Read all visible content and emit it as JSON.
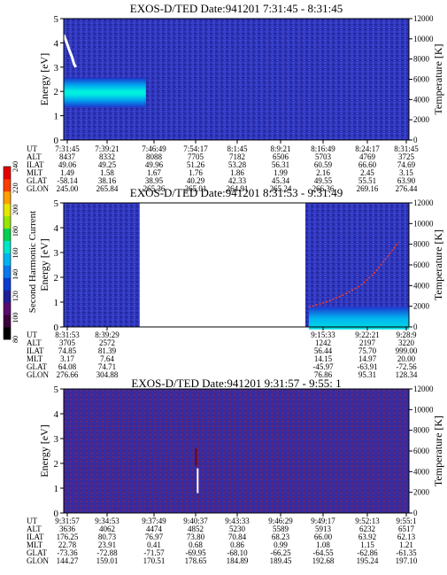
{
  "colorbar": {
    "label": "Second Harmonic Current",
    "ticks": [
      240,
      220,
      200,
      180,
      160,
      140,
      120,
      100,
      80
    ],
    "colors": [
      "#000000",
      "#3c003c",
      "#5a0a6e",
      "#1e1e96",
      "#0a3cd2",
      "#0a78f0",
      "#00b4f0",
      "#00e6c8",
      "#00d250",
      "#96e600",
      "#e6e600",
      "#ffa000",
      "#ff3c00",
      "#e60000"
    ]
  },
  "row_labels": [
    "UT",
    "ALT",
    "ILAT",
    "MLT",
    "GLAT",
    "GLON"
  ],
  "chart_data": [
    {
      "type": "heatmap",
      "title": "EXOS-D/TED   Date:941201   7:31:45 - 8:31:45",
      "ylabel": "Energy [eV]",
      "ylabel2": "Temperature [K]",
      "ylim": [
        0,
        5
      ],
      "y2lim": [
        0,
        12000
      ],
      "yticks": [
        0,
        1,
        2,
        3,
        4,
        5
      ],
      "y2ticks": [
        0,
        2000,
        4000,
        6000,
        8000,
        10000,
        12000
      ],
      "features": {
        "band": {
          "t_from": 0,
          "t_to": 0.238,
          "e_center": 1.95,
          "e_half_width": 0.6
        },
        "temperature_trace": [
          [
            0.0,
            10400
          ],
          [
            0.008,
            9700
          ],
          [
            0.016,
            8900
          ],
          [
            0.024,
            8200
          ],
          [
            0.03,
            7500
          ],
          [
            0.035,
            7200
          ]
        ],
        "gap": [],
        "spikes": []
      },
      "ut": [
        "7:31:45",
        "7:39:21",
        "7:46:49",
        "7:54:17",
        "8:1:45",
        "8:9:21",
        "8:16:49",
        "8:24:17",
        "8:31:45"
      ],
      "rows": [
        [
          "8437",
          "8332",
          "8088",
          "7705",
          "7182",
          "6506",
          "5703",
          "4769",
          "3725"
        ],
        [
          "49.06",
          "49.25",
          "49.96",
          "51.26",
          "53.28",
          "56.31",
          "60.59",
          "66.60",
          "74.69"
        ],
        [
          "1.49",
          "1.58",
          "1.67",
          "1.76",
          "1.86",
          "1.99",
          "2.16",
          "2.45",
          "3.15"
        ],
        [
          "-58.14",
          "38.16",
          "38.95",
          "40.29",
          "42.33",
          "45.34",
          "49.55",
          "55.51",
          "63.90"
        ],
        [
          "245.00",
          "265.84",
          "265.36",
          "265.01",
          "264.91",
          "265.24",
          "266.36",
          "269.16",
          "276.44"
        ]
      ]
    },
    {
      "type": "heatmap",
      "title": "EXOS-D/TED   Date:941201   8:31:53 - 9:31:49",
      "ylabel": "Energy [eV]",
      "ylabel2": "Temperature [K]",
      "ylim": [
        0,
        5
      ],
      "y2lim": [
        0,
        12000
      ],
      "yticks": [
        0,
        1,
        2,
        3,
        4,
        5
      ],
      "y2ticks": [
        0,
        2000,
        4000,
        6000,
        8000,
        10000,
        12000
      ],
      "features": {
        "band": {
          "t_from": 0.71,
          "t_to": 1.0,
          "e_center": 0.35,
          "e_half_width": 0.45
        },
        "temperature_trace": [
          [
            0.71,
            1900
          ],
          [
            0.76,
            2400
          ],
          [
            0.81,
            3100
          ],
          [
            0.86,
            4000
          ],
          [
            0.9,
            5200
          ],
          [
            0.94,
            6900
          ],
          [
            0.97,
            8200
          ]
        ],
        "gap": [
          0.22,
          0.7
        ],
        "spikes": []
      },
      "ut": [
        "8:31:53",
        "8:39:29",
        "",
        "",
        "",
        "",
        "9:15:33",
        "9:22:21",
        "9:28:9"
      ],
      "rows": [
        [
          "3705",
          "2572",
          "",
          "",
          "",
          "",
          "1242",
          "2197",
          "3220"
        ],
        [
          "74.85",
          "81.39",
          "",
          "",
          "",
          "",
          "56.44",
          "75.70",
          "999.00"
        ],
        [
          "3.17",
          "7.64",
          "",
          "",
          "",
          "",
          "14.15",
          "14.97",
          "20.00"
        ],
        [
          "64.08",
          "74.71",
          "",
          "",
          "",
          "",
          "-45.97",
          "-63.91",
          "-72.56"
        ],
        [
          "276.66",
          "304.88",
          "",
          "",
          "",
          "",
          "76.86",
          "95.31",
          "128.34"
        ]
      ]
    },
    {
      "type": "heatmap",
      "title": "EXOS-D/TED   Date:941201   9:31:57 - 9:55: 1",
      "ylabel": "Energy [eV]",
      "ylabel2": "Temperature [K]",
      "ylim": [
        0,
        5
      ],
      "y2lim": [
        0,
        12000
      ],
      "yticks": [
        0,
        1,
        2,
        3,
        4,
        5
      ],
      "y2ticks": [
        0,
        2000,
        4000,
        6000,
        8000,
        10000,
        12000
      ],
      "features": {
        "band": null,
        "temperature_trace": [],
        "gap": [],
        "spikes": [
          [
            0.388,
            0.8,
            1.8,
            "#ffffff"
          ],
          [
            0.383,
            1.9,
            2.6,
            "#7a0000"
          ]
        ]
      },
      "ut": [
        "9:31:57",
        "9:34:53",
        "9:37:49",
        "9:40:37",
        "9:43:33",
        "9:46:29",
        "9:49:17",
        "9:52:13",
        "9:55:1"
      ],
      "rows": [
        [
          "3636",
          "4062",
          "4474",
          "4852",
          "5230",
          "5589",
          "5913",
          "6232",
          "6517"
        ],
        [
          "176.25",
          "80.73",
          "76.97",
          "73.80",
          "70.84",
          "68.23",
          "66.00",
          "63.92",
          "62.13"
        ],
        [
          "22.78",
          "23.91",
          "0.41",
          "0.68",
          "0.86",
          "0.99",
          "1.08",
          "1.15",
          "1.21"
        ],
        [
          "-73.36",
          "-72.88",
          "-71.57",
          "-69.95",
          "-68.10",
          "-66.25",
          "-64.55",
          "-62.86",
          "-61.35"
        ],
        [
          "144.27",
          "159.01",
          "170.51",
          "178.65",
          "184.89",
          "189.45",
          "192.68",
          "195.24",
          "197.10"
        ]
      ]
    }
  ]
}
